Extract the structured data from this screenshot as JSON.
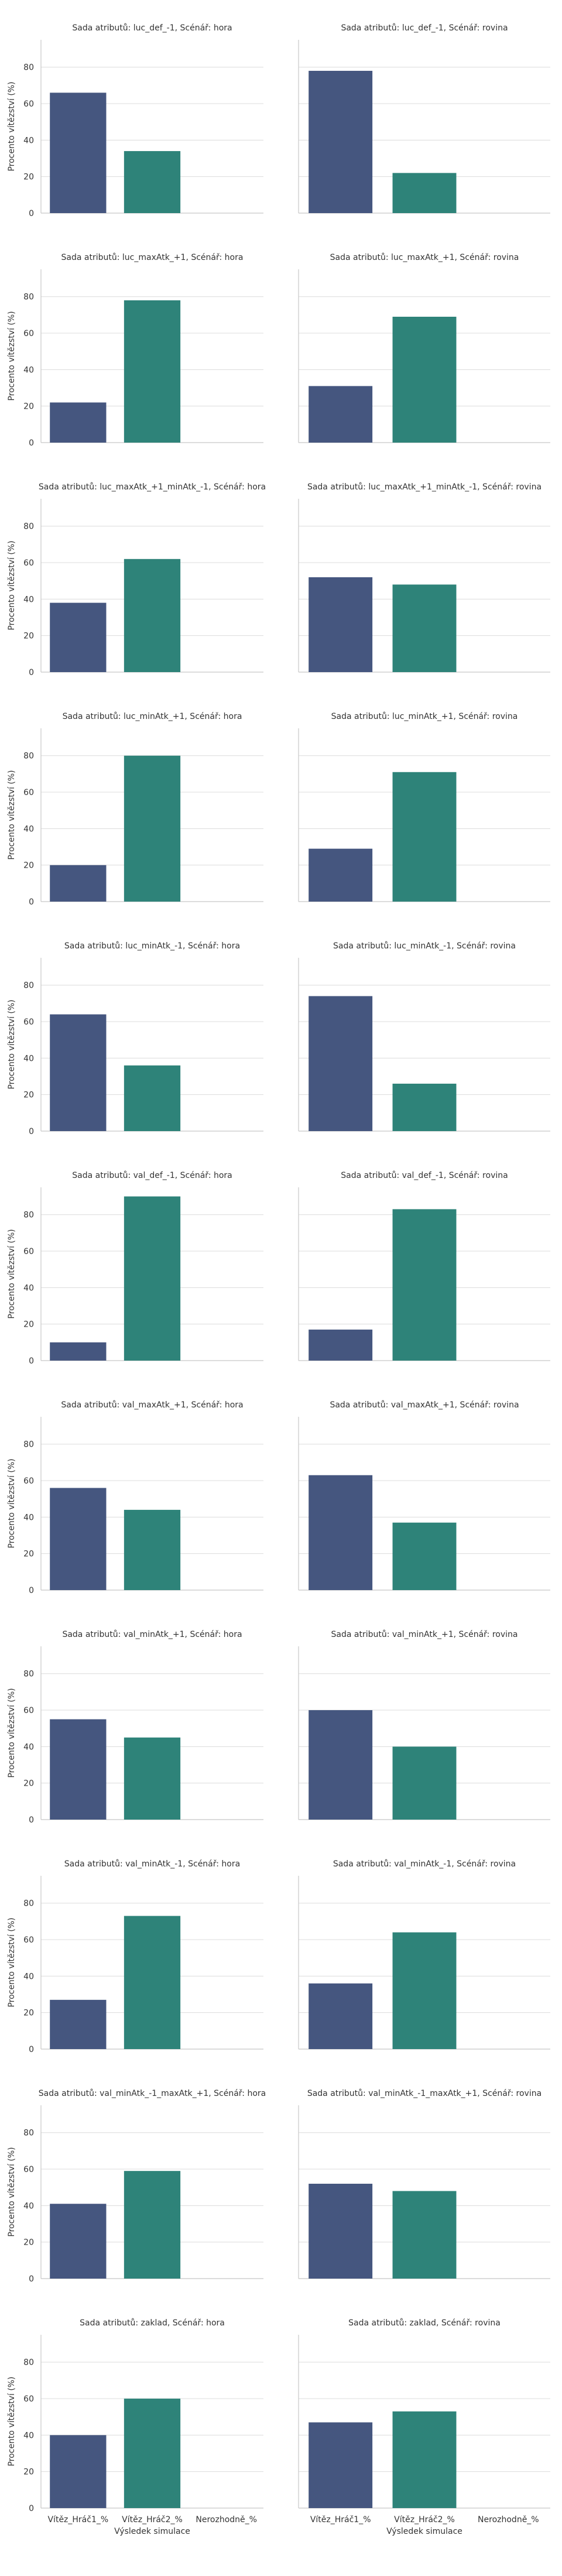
{
  "figure": {
    "ylabel": "Procento vítězství (%)",
    "xlabel": "Výsledek simulace",
    "colors": {
      "player1": "#45567f",
      "player2": "#2e8379",
      "grid": "#dcdcdc",
      "axis": "#c8c8c8",
      "text": "#333333"
    }
  },
  "chart_data": {
    "type": "bar",
    "categories": [
      "Vítěz_Hráč1_%",
      "Vítěz_Hráč2_%",
      "Nerozhodně_%"
    ],
    "ylim": [
      0,
      95
    ],
    "yticks": [
      0,
      20,
      40,
      60,
      80
    ],
    "grid": true,
    "panels": [
      {
        "title": "Sada atributů: luc_def_-1, Scénář: hora",
        "values": [
          66,
          34,
          0
        ]
      },
      {
        "title": "Sada atributů: luc_def_-1, Scénář: rovina",
        "values": [
          78,
          22,
          0
        ]
      },
      {
        "title": "Sada atributů: luc_maxAtk_+1, Scénář: hora",
        "values": [
          22,
          78,
          0
        ]
      },
      {
        "title": "Sada atributů: luc_maxAtk_+1, Scénář: rovina",
        "values": [
          31,
          69,
          0
        ]
      },
      {
        "title": "Sada atributů: luc_maxAtk_+1_minAtk_-1, Scénář: hora",
        "values": [
          38,
          62,
          0
        ]
      },
      {
        "title": "Sada atributů: luc_maxAtk_+1_minAtk_-1, Scénář: rovina",
        "values": [
          52,
          48,
          0
        ]
      },
      {
        "title": "Sada atributů: luc_minAtk_+1, Scénář: hora",
        "values": [
          20,
          80,
          0
        ]
      },
      {
        "title": "Sada atributů: luc_minAtk_+1, Scénář: rovina",
        "values": [
          29,
          71,
          0
        ]
      },
      {
        "title": "Sada atributů: luc_minAtk_-1, Scénář: hora",
        "values": [
          64,
          36,
          0
        ]
      },
      {
        "title": "Sada atributů: luc_minAtk_-1, Scénář: rovina",
        "values": [
          74,
          26,
          0
        ]
      },
      {
        "title": "Sada atributů: val_def_-1, Scénář: hora",
        "values": [
          10,
          90,
          0
        ]
      },
      {
        "title": "Sada atributů: val_def_-1, Scénář: rovina",
        "values": [
          17,
          83,
          0
        ]
      },
      {
        "title": "Sada atributů: val_maxAtk_+1, Scénář: hora",
        "values": [
          56,
          44,
          0
        ]
      },
      {
        "title": "Sada atributů: val_maxAtk_+1, Scénář: rovina",
        "values": [
          63,
          37,
          0
        ]
      },
      {
        "title": "Sada atributů: val_minAtk_+1, Scénář: hora",
        "values": [
          55,
          45,
          0
        ]
      },
      {
        "title": "Sada atributů: val_minAtk_+1, Scénář: rovina",
        "values": [
          60,
          40,
          0
        ]
      },
      {
        "title": "Sada atributů: val_minAtk_-1, Scénář: hora",
        "values": [
          27,
          73,
          0
        ]
      },
      {
        "title": "Sada atributů: val_minAtk_-1, Scénář: rovina",
        "values": [
          36,
          64,
          0
        ]
      },
      {
        "title": "Sada atributů: val_minAtk_-1_maxAtk_+1, Scénář: hora",
        "values": [
          41,
          59,
          0
        ]
      },
      {
        "title": "Sada atributů: val_minAtk_-1_maxAtk_+1, Scénář: rovina",
        "values": [
          52,
          48,
          0
        ]
      },
      {
        "title": "Sada atributů: zaklad, Scénář: hora",
        "values": [
          40,
          60,
          0
        ]
      },
      {
        "title": "Sada atributů: zaklad, Scénář: rovina",
        "values": [
          47,
          53,
          0
        ]
      }
    ]
  }
}
